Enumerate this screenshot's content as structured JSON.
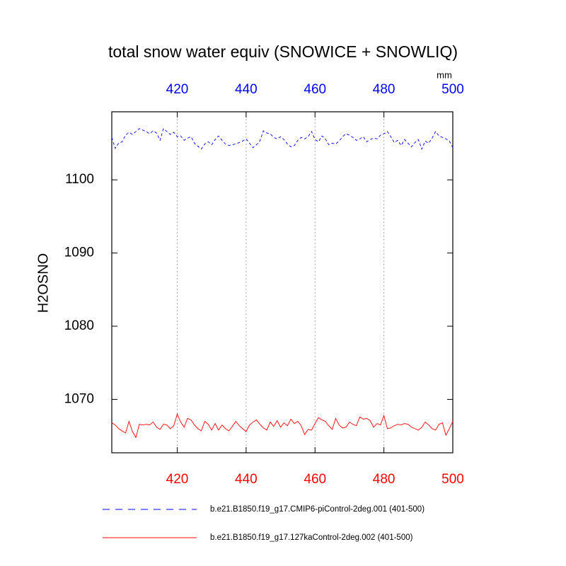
{
  "chart_data": {
    "type": "line",
    "title": "total snow water equiv (SNOWICE + SNOWLIQ)",
    "ylabel": "H2OSNO",
    "top_axis_label": "mm",
    "x": [
      401,
      402,
      403,
      404,
      405,
      406,
      407,
      408,
      409,
      410,
      411,
      412,
      413,
      414,
      415,
      416,
      417,
      418,
      419,
      420,
      421,
      422,
      423,
      424,
      425,
      426,
      427,
      428,
      429,
      430,
      431,
      432,
      433,
      434,
      435,
      436,
      437,
      438,
      439,
      440,
      441,
      442,
      443,
      444,
      445,
      446,
      447,
      448,
      449,
      450,
      451,
      452,
      453,
      454,
      455,
      456,
      457,
      458,
      459,
      460,
      461,
      462,
      463,
      464,
      465,
      466,
      467,
      468,
      469,
      470,
      471,
      472,
      473,
      474,
      475,
      476,
      477,
      478,
      479,
      480,
      481,
      482,
      483,
      484,
      485,
      486,
      487,
      488,
      489,
      490,
      491,
      492,
      493,
      494,
      495,
      496,
      497,
      498,
      499,
      500
    ],
    "series": [
      {
        "name": "b.e21.B1850.f19_g17.CMIP6-piControl-2deg.001 (401-500)",
        "color": "#0000ff",
        "dash": true,
        "values": [
          1105.8,
          1104.3,
          1105.0,
          1105.2,
          1106.1,
          1106.5,
          1106.2,
          1106.6,
          1107.0,
          1106.8,
          1106.6,
          1106.3,
          1106.7,
          1106.4,
          1105.4,
          1107.0,
          1106.6,
          1106.2,
          1106.5,
          1105.9,
          1106.0,
          1105.4,
          1105.7,
          1105.9,
          1105.0,
          1104.6,
          1104.2,
          1104.9,
          1105.2,
          1104.8,
          1105.5,
          1106.0,
          1105.4,
          1104.9,
          1104.7,
          1104.8,
          1104.9,
          1105.1,
          1105.3,
          1105.6,
          1105.0,
          1104.4,
          1104.8,
          1105.3,
          1106.7,
          1106.4,
          1106.3,
          1105.8,
          1105.6,
          1105.9,
          1105.5,
          1104.9,
          1104.5,
          1104.7,
          1105.4,
          1105.8,
          1105.6,
          1105.9,
          1106.6,
          1105.5,
          1105.2,
          1106.0,
          1105.6,
          1104.8,
          1105.0,
          1104.9,
          1105.3,
          1105.9,
          1106.3,
          1106.1,
          1105.8,
          1105.4,
          1105.6,
          1105.9,
          1105.2,
          1105.5,
          1105.7,
          1105.6,
          1106.1,
          1106.3,
          1106.6,
          1105.9,
          1105.1,
          1105.4,
          1104.7,
          1105.5,
          1105.0,
          1104.5,
          1105.1,
          1105.5,
          1104.2,
          1105.3,
          1105.0,
          1105.7,
          1106.6,
          1106.0,
          1105.8,
          1105.6,
          1105.3,
          1104.4
        ]
      },
      {
        "name": "b.e21.B1850.f19_g17.127kaControl-2deg.002 (401-500)",
        "color": "#ff0000",
        "dash": false,
        "values": [
          1066.8,
          1066.5,
          1066.0,
          1065.7,
          1065.4,
          1067.0,
          1065.6,
          1064.8,
          1066.6,
          1066.5,
          1066.6,
          1066.5,
          1066.9,
          1066.2,
          1065.9,
          1066.6,
          1066.5,
          1066.0,
          1066.4,
          1068.0,
          1066.9,
          1066.2,
          1067.4,
          1067.2,
          1066.5,
          1066.0,
          1065.7,
          1067.0,
          1066.6,
          1065.8,
          1066.7,
          1065.8,
          1066.5,
          1066.0,
          1065.7,
          1066.3,
          1067.0,
          1066.4,
          1066.0,
          1065.6,
          1066.5,
          1066.9,
          1067.2,
          1066.6,
          1066.1,
          1065.8,
          1066.9,
          1066.3,
          1067.1,
          1066.2,
          1066.8,
          1066.4,
          1067.3,
          1066.7,
          1067.0,
          1066.4,
          1065.2,
          1065.9,
          1065.8,
          1066.7,
          1067.5,
          1067.2,
          1067.0,
          1066.4,
          1065.9,
          1067.4,
          1066.5,
          1066.1,
          1066.2,
          1066.9,
          1066.6,
          1066.4,
          1067.6,
          1067.3,
          1067.4,
          1067.1,
          1066.2,
          1066.7,
          1066.5,
          1067.8,
          1066.0,
          1066.1,
          1066.4,
          1066.6,
          1066.5,
          1066.7,
          1066.6,
          1066.2,
          1066.0,
          1065.8,
          1066.2,
          1066.9,
          1066.5,
          1066.0,
          1065.8,
          1066.6,
          1066.8,
          1065.1,
          1066.0,
          1067.0
        ]
      }
    ],
    "xlim": [
      401,
      500
    ],
    "xticks": [
      420,
      440,
      460,
      480,
      500
    ],
    "ylim": [
      1062.7,
      1109.3
    ],
    "yticks": [
      1070,
      1080,
      1090,
      1100
    ],
    "top_tick_color": "#0000ff",
    "bottom_tick_color": "#ff0000",
    "xgrid": true,
    "legend": "bottom"
  }
}
